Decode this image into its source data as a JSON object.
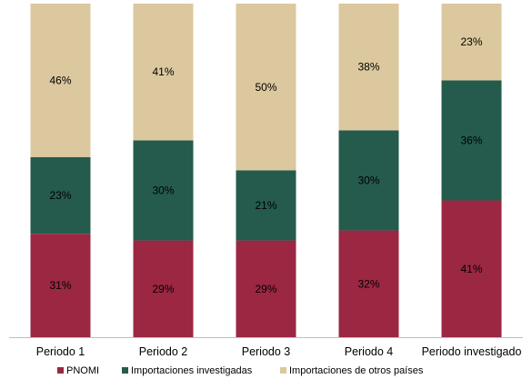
{
  "chart_data": {
    "type": "bar",
    "stacked": true,
    "normalized_percent": true,
    "categories": [
      "Periodo 1",
      "Periodo 2",
      "Periodo 3",
      "Periodo 4",
      "Periodo investigado"
    ],
    "series": [
      {
        "name": "PNOMI",
        "values": [
          31,
          29,
          29,
          32,
          41
        ],
        "color": "#9b2743"
      },
      {
        "name": "Importaciones investigadas",
        "values": [
          23,
          30,
          21,
          30,
          36
        ],
        "color": "#245b4d"
      },
      {
        "name": "Importaciones de otros países",
        "values": [
          46,
          41,
          50,
          38,
          23
        ],
        "color": "#dcc89e"
      }
    ],
    "data_labels": {
      "PNOMI": [
        "31%",
        "29%",
        "29%",
        "32%",
        "41%"
      ],
      "Importaciones investigadas": [
        "23%",
        "30%",
        "21%",
        "30%",
        "36%"
      ],
      "Importaciones de otros países": [
        "46%",
        "41%",
        "50%",
        "38%",
        "23%"
      ]
    },
    "ylim": [
      0,
      100
    ],
    "grid": false,
    "legend": "bottom",
    "axis_color": "#bfbfbf",
    "text_color": "#000000"
  }
}
